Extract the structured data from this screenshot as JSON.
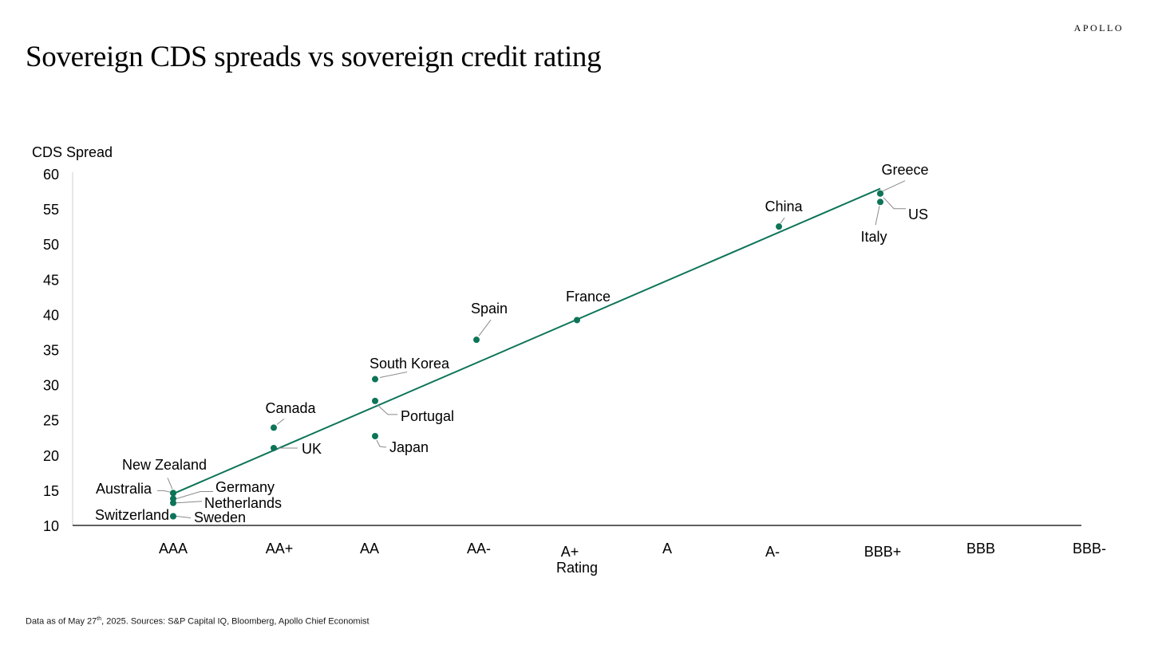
{
  "brand": "APOLLO",
  "title": "Sovereign CDS spreads vs sovereign credit rating",
  "footnote": {
    "prefix": "Data as of May 27",
    "sup": "th",
    "suffix": ", 2025. Sources: S&P Capital IQ, Bloomberg, Apollo Chief Economist"
  },
  "colors": {
    "marker": "#0d7458",
    "trend": "#0d7458",
    "leader": "#8a8a8a",
    "axis": "#000000"
  },
  "chart_data": {
    "type": "scatter",
    "title": "Sovereign CDS spreads vs sovereign credit rating",
    "xlabel": "Rating",
    "ylabel": "CDS Spread",
    "ylim": [
      10,
      60
    ],
    "yticks": [
      10,
      15,
      20,
      25,
      30,
      35,
      40,
      45,
      50,
      55,
      60
    ],
    "categories": [
      "AAA",
      "AA+",
      "AA",
      "AA-",
      "A+",
      "A",
      "A-",
      "BBB+",
      "BBB",
      "BBB-"
    ],
    "grid": false,
    "points": [
      {
        "label": "Switzerland",
        "rating": "AAA",
        "y": 11.3
      },
      {
        "label": "Sweden",
        "rating": "AAA",
        "y": 11.3
      },
      {
        "label": "Netherlands",
        "rating": "AAA",
        "y": 13.2
      },
      {
        "label": "Germany",
        "rating": "AAA",
        "y": 13.8
      },
      {
        "label": "Australia",
        "rating": "AAA",
        "y": 14.6
      },
      {
        "label": "New Zealand",
        "rating": "AAA",
        "y": 14.6
      },
      {
        "label": "UK",
        "rating": "AA+",
        "y": 21.0
      },
      {
        "label": "Canada",
        "rating": "AA+",
        "y": 23.9
      },
      {
        "label": "Japan",
        "rating": "AA",
        "y": 22.7
      },
      {
        "label": "Portugal",
        "rating": "AA",
        "y": 27.7
      },
      {
        "label": "South Korea",
        "rating": "AA",
        "y": 30.8
      },
      {
        "label": "Spain",
        "rating": "AA-",
        "y": 36.4
      },
      {
        "label": "France",
        "rating": "A+",
        "y": 39.2
      },
      {
        "label": "China",
        "rating": "A-",
        "y": 52.5
      },
      {
        "label": "Italy",
        "rating": "BBB+",
        "y": 56.0
      },
      {
        "label": "US",
        "rating": "BBB+",
        "y": 57.2
      },
      {
        "label": "Greece",
        "rating": "BBB+",
        "y": 57.2
      }
    ],
    "trendline": {
      "from": {
        "rating": "AAA",
        "y": 14.5
      },
      "to": {
        "rating": "BBB+",
        "y": 57.9
      }
    }
  }
}
